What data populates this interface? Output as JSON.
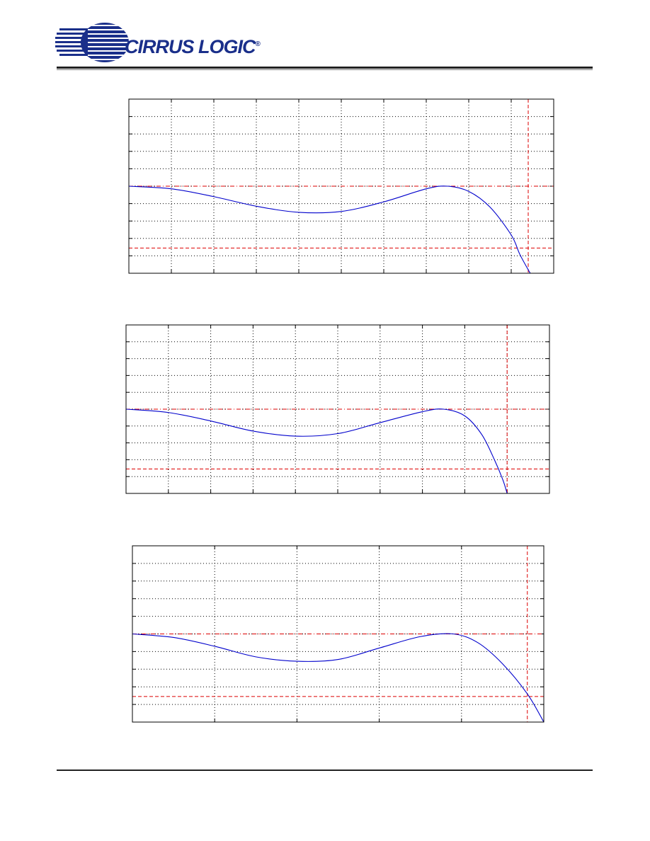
{
  "header": {
    "brand_text": "CIRRUS LOGIC",
    "brand_mark": "®",
    "brand_color": "#1a2f8a"
  },
  "colors": {
    "response": "#0000cc",
    "limit": "#dd0000",
    "grid": "#000000"
  },
  "chart_data": [
    {
      "type": "line",
      "title": "",
      "xlabel": "",
      "ylabel": "",
      "xlim": [
        0,
        10
      ],
      "ylim": [
        0,
        10
      ],
      "x_divisions": 10,
      "y_divisions": 10,
      "grid": "dotted",
      "reference_lines": {
        "passband_top": 5,
        "stopband_bottom": 1.45,
        "cutoff_x": 9.4
      },
      "series": [
        {
          "x": [
            0,
            1,
            2,
            3,
            4,
            5,
            6,
            7,
            7.5,
            8,
            8.5,
            9,
            9.2,
            9.4,
            9.5
          ],
          "y": [
            5,
            4.85,
            4.4,
            3.85,
            3.5,
            3.55,
            4.1,
            4.85,
            5.0,
            4.7,
            3.8,
            2.2,
            1.1,
            0.2,
            -0.2
          ]
        }
      ]
    },
    {
      "type": "line",
      "title": "",
      "xlabel": "",
      "ylabel": "",
      "xlim": [
        0,
        10
      ],
      "ylim": [
        0,
        10
      ],
      "x_divisions": 10,
      "y_divisions": 10,
      "grid": "dotted",
      "reference_lines": {
        "passband_top": 5,
        "stopband_bottom": 1.45,
        "cutoff_x": 9.0
      },
      "series": [
        {
          "x": [
            0,
            1,
            2,
            3,
            4,
            5,
            6,
            7,
            7.5,
            8,
            8.4,
            8.7,
            8.9,
            9.0
          ],
          "y": [
            5,
            4.8,
            4.3,
            3.7,
            3.4,
            3.55,
            4.2,
            4.85,
            5.0,
            4.6,
            3.5,
            2.0,
            0.8,
            0.0
          ]
        }
      ]
    },
    {
      "type": "line",
      "title": "",
      "xlabel": "",
      "ylabel": "",
      "xlim": [
        0,
        5
      ],
      "ylim": [
        0,
        10
      ],
      "x_divisions": 5,
      "y_divisions": 10,
      "grid": "dotted",
      "reference_lines": {
        "passband_top": 5,
        "stopband_bottom": 1.45,
        "cutoff_x": 4.8
      },
      "series": [
        {
          "x": [
            0,
            0.5,
            1,
            1.5,
            2,
            2.5,
            3,
            3.5,
            3.9,
            4.2,
            4.5,
            4.8,
            5.0
          ],
          "y": [
            5,
            4.8,
            4.3,
            3.7,
            3.45,
            3.55,
            4.2,
            4.85,
            5.0,
            4.5,
            3.3,
            1.6,
            0.0
          ]
        }
      ]
    }
  ]
}
